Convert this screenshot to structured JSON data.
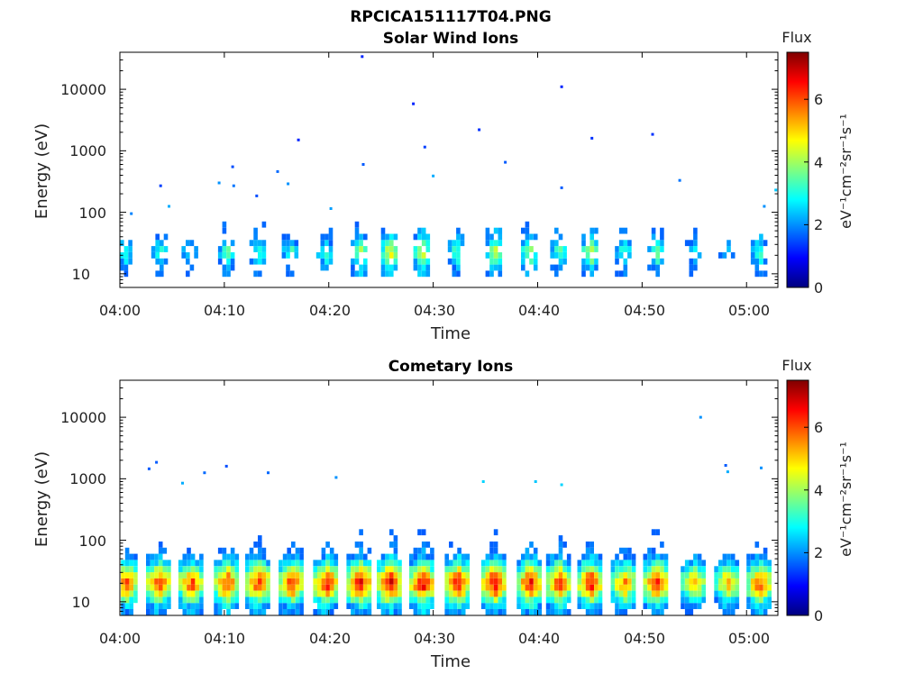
{
  "figure_title": "RPCICA151117T04.PNG",
  "chart_data": [
    {
      "type": "heatmap",
      "title": "Solar Wind Ions",
      "xlabel": "Time",
      "ylabel": "Energy (eV)",
      "yscale": "log",
      "ylim": [
        6,
        40000
      ],
      "xlim_minutes": [
        0,
        63
      ],
      "x_tick_labels": [
        "04:00",
        "04:10",
        "04:20",
        "04:30",
        "04:40",
        "04:50",
        "05:00"
      ],
      "x_tick_minutes": [
        0,
        10,
        20,
        30,
        40,
        50,
        60
      ],
      "y_tick_labels": [
        "10",
        "100",
        "1000",
        "10000"
      ],
      "y_tick_values": [
        10,
        100,
        1000,
        10000
      ],
      "colorbar": {
        "title": "Flux",
        "label": "eV⁻¹cm⁻²sr⁻¹s⁻¹",
        "range": [
          0,
          7.5
        ],
        "ticks": [
          "0",
          "2",
          "4",
          "6"
        ]
      },
      "bursts_minutes": [
        0.5,
        3.9,
        6.8,
        10.3,
        13.3,
        16.4,
        19.7,
        23.0,
        25.9,
        29.0,
        32.3,
        35.9,
        39.3,
        42.1,
        45.1,
        48.3,
        51.4,
        55.0,
        58.2,
        61.3
      ],
      "bursts_peak_flux": [
        3.2,
        3.3,
        3.0,
        3.5,
        3.4,
        3.3,
        3.4,
        4.2,
        4.8,
        4.6,
        3.6,
        4.4,
        4.2,
        3.5,
        4.6,
        3.5,
        3.9,
        2.8,
        2.5,
        3.4
      ],
      "isolated_points": [
        {
          "t": 23.2,
          "e": 34000,
          "f": 1.2
        },
        {
          "t": 28.1,
          "e": 5800,
          "f": 1.2
        },
        {
          "t": 42.3,
          "e": 11000,
          "f": 1.2
        },
        {
          "t": 34.4,
          "e": 2200,
          "f": 1.3
        },
        {
          "t": 51.0,
          "e": 1850,
          "f": 1.3
        },
        {
          "t": 45.2,
          "e": 1600,
          "f": 1.3
        },
        {
          "t": 17.1,
          "e": 1500,
          "f": 1.2
        },
        {
          "t": 29.2,
          "e": 1150,
          "f": 1.4
        },
        {
          "t": 36.9,
          "e": 650,
          "f": 1.6
        },
        {
          "t": 23.3,
          "e": 600,
          "f": 1.6
        },
        {
          "t": 10.8,
          "e": 550,
          "f": 1.5
        },
        {
          "t": 15.1,
          "e": 460,
          "f": 1.7
        },
        {
          "t": 30.0,
          "e": 390,
          "f": 2.2
        },
        {
          "t": 53.6,
          "e": 330,
          "f": 1.8
        },
        {
          "t": 9.5,
          "e": 300,
          "f": 2.0
        },
        {
          "t": 16.1,
          "e": 290,
          "f": 2.0
        },
        {
          "t": 3.9,
          "e": 270,
          "f": 1.4
        },
        {
          "t": 10.9,
          "e": 270,
          "f": 1.8
        },
        {
          "t": 42.3,
          "e": 250,
          "f": 1.6
        },
        {
          "t": 62.8,
          "e": 230,
          "f": 2.4
        },
        {
          "t": 13.1,
          "e": 185,
          "f": 1.5
        },
        {
          "t": 1.1,
          "e": 95,
          "f": 1.9
        },
        {
          "t": 4.7,
          "e": 125,
          "f": 2.2
        },
        {
          "t": 20.2,
          "e": 115,
          "f": 2.1
        },
        {
          "t": 61.7,
          "e": 125,
          "f": 2.0
        }
      ]
    },
    {
      "type": "heatmap",
      "title": "Cometary Ions",
      "xlabel": "Time",
      "ylabel": "Energy (eV)",
      "yscale": "log",
      "ylim": [
        6,
        40000
      ],
      "xlim_minutes": [
        0,
        63
      ],
      "x_tick_labels": [
        "04:00",
        "04:10",
        "04:20",
        "04:30",
        "04:40",
        "04:50",
        "05:00"
      ],
      "x_tick_minutes": [
        0,
        10,
        20,
        30,
        40,
        50,
        60
      ],
      "y_tick_labels": [
        "10",
        "100",
        "1000",
        "10000"
      ],
      "y_tick_values": [
        10,
        100,
        1000,
        10000
      ],
      "colorbar": {
        "title": "Flux",
        "label": "eV⁻¹cm⁻²sr⁻¹s⁻¹",
        "range": [
          0,
          7.5
        ],
        "ticks": [
          "0",
          "2",
          "4",
          "6"
        ]
      },
      "bursts_minutes": [
        0.6,
        3.8,
        6.9,
        10.3,
        13.3,
        16.5,
        19.8,
        23.0,
        25.9,
        29.0,
        32.4,
        35.9,
        39.3,
        42.1,
        45.1,
        48.3,
        51.4,
        55.0,
        58.2,
        61.3
      ],
      "bursts_peak_flux": [
        6.0,
        6.2,
        6.1,
        6.2,
        6.4,
        6.3,
        6.5,
        6.8,
        6.9,
        6.8,
        6.6,
        6.8,
        6.6,
        6.4,
        6.5,
        5.6,
        6.6,
        5.2,
        5.2,
        6.0
      ],
      "isolated_points": [
        {
          "t": 55.6,
          "e": 10000,
          "f": 2.0
        },
        {
          "t": 3.5,
          "e": 1850,
          "f": 1.6
        },
        {
          "t": 2.8,
          "e": 1450,
          "f": 1.6
        },
        {
          "t": 10.2,
          "e": 1600,
          "f": 1.5
        },
        {
          "t": 8.1,
          "e": 1250,
          "f": 1.7
        },
        {
          "t": 14.2,
          "e": 1250,
          "f": 1.7
        },
        {
          "t": 20.7,
          "e": 1050,
          "f": 2.0
        },
        {
          "t": 58.0,
          "e": 1650,
          "f": 1.6
        },
        {
          "t": 58.2,
          "e": 1300,
          "f": 2.2
        },
        {
          "t": 61.4,
          "e": 1500,
          "f": 2.0
        },
        {
          "t": 34.8,
          "e": 900,
          "f": 2.5
        },
        {
          "t": 39.8,
          "e": 900,
          "f": 2.4
        },
        {
          "t": 6.0,
          "e": 850,
          "f": 2.2
        },
        {
          "t": 42.3,
          "e": 800,
          "f": 2.5
        }
      ]
    }
  ]
}
